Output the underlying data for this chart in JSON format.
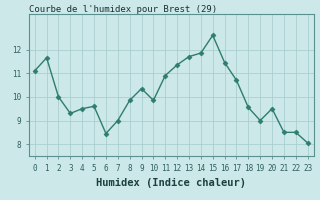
{
  "title": "Courbe de l'humidex pour Brest (29)",
  "xlabel": "Humidex (Indice chaleur)",
  "x": [
    0,
    1,
    2,
    3,
    4,
    5,
    6,
    7,
    8,
    9,
    10,
    11,
    12,
    13,
    14,
    15,
    16,
    17,
    18,
    19,
    20,
    21,
    22,
    23
  ],
  "y": [
    11.1,
    11.65,
    10.0,
    9.3,
    9.5,
    9.6,
    8.45,
    9.0,
    9.85,
    10.35,
    9.85,
    10.9,
    11.35,
    11.7,
    11.85,
    12.6,
    11.45,
    10.7,
    9.55,
    9.0,
    9.5,
    8.5,
    8.5,
    8.05
  ],
  "line_color": "#2e7d6e",
  "marker": "D",
  "marker_size": 2.5,
  "line_width": 1.0,
  "bg_color": "#cce8e8",
  "grid_color": "#aacece",
  "ylim": [
    7.5,
    13.5
  ],
  "yticks": [
    8,
    9,
    10,
    11,
    12
  ],
  "xticks": [
    0,
    1,
    2,
    3,
    4,
    5,
    6,
    7,
    8,
    9,
    10,
    11,
    12,
    13,
    14,
    15,
    16,
    17,
    18,
    19,
    20,
    21,
    22,
    23
  ],
  "tick_fontsize": 5.5,
  "xlabel_fontsize": 7.5,
  "title_fontsize": 6.5
}
